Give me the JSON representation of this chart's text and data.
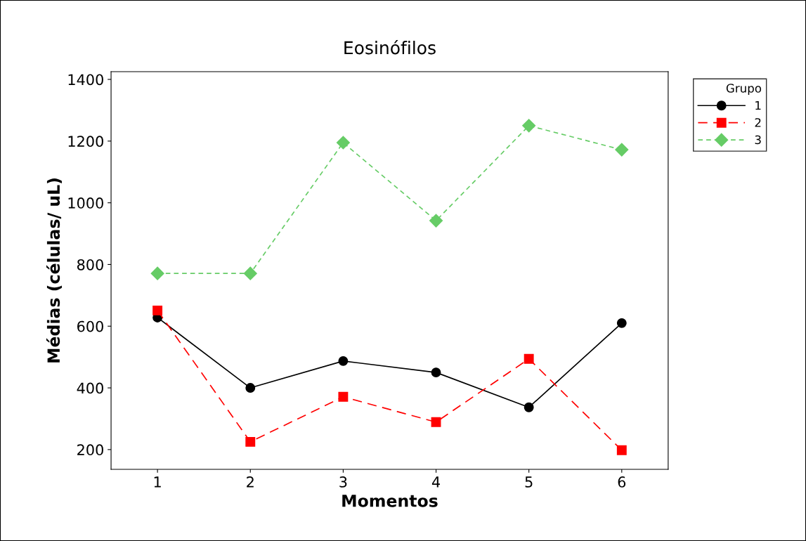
{
  "chart_data": {
    "type": "line",
    "title": "Eosinófilos",
    "xlabel": "Momentos",
    "ylabel": "Médias (células/ uL)",
    "legend_title": "Grupo",
    "x": [
      1,
      2,
      3,
      4,
      5,
      6
    ],
    "series": [
      {
        "name": "1",
        "color": "#000000",
        "marker": "circle",
        "line_style": "solid",
        "values": [
          628,
          400,
          487,
          450,
          337,
          610
        ]
      },
      {
        "name": "2",
        "color": "#ff0000",
        "marker": "square",
        "line_style": "dashed",
        "values": [
          651,
          225,
          371,
          289,
          494,
          198
        ]
      },
      {
        "name": "3",
        "color": "#66cc66",
        "marker": "diamond",
        "line_style": "dotted",
        "values": [
          771,
          771,
          1195,
          942,
          1250,
          1172
        ]
      }
    ],
    "xlim": [
      0.5,
      6.5
    ],
    "xticks": [
      1,
      2,
      3,
      4,
      5,
      6
    ],
    "ylim": [
      136,
      1425
    ],
    "yticks": [
      200,
      400,
      600,
      800,
      1000,
      1200,
      1400
    ],
    "grid": false,
    "legend": "top right"
  }
}
